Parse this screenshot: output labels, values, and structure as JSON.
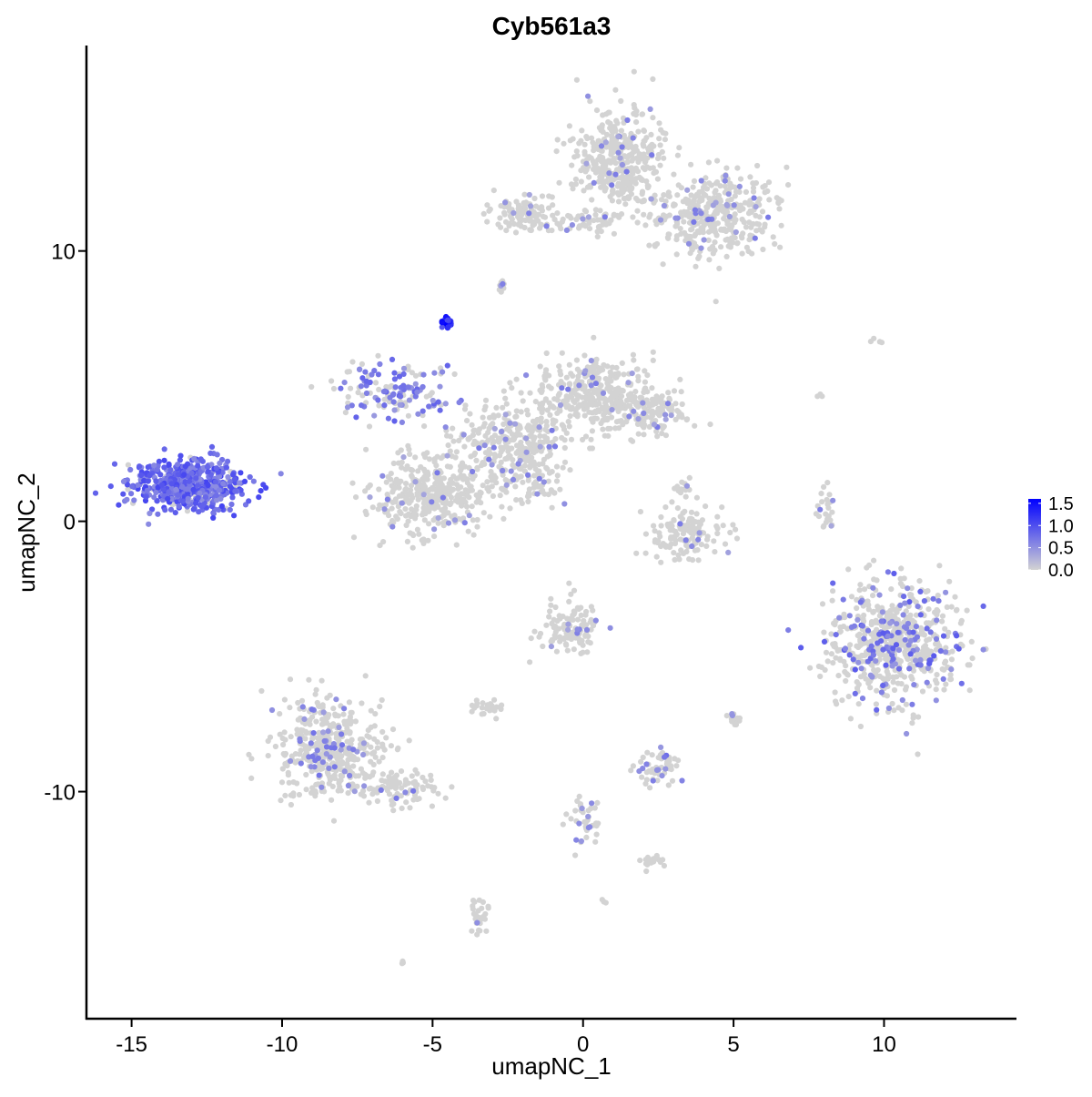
{
  "chart_data": {
    "type": "scatter",
    "title": "Cyb561a3",
    "xlabel": "umapNC_1",
    "ylabel": "umapNC_2",
    "xlim": [
      -16.5,
      14.4
    ],
    "ylim": [
      -18.4,
      17.6
    ],
    "xticks": [
      -15,
      -10,
      -5,
      0,
      5,
      10
    ],
    "xtick_labels": [
      "-15",
      "-10",
      "-5",
      "0",
      "5",
      "10"
    ],
    "yticks": [
      10,
      0,
      -10
    ],
    "ytick_labels": [
      "10",
      "0",
      "-10"
    ],
    "grid": false,
    "legend": {
      "placement": "right",
      "type": "colorbar",
      "tick_labels": [
        "1.5",
        "1.0",
        "0.5",
        "0.0"
      ],
      "tick_values": [
        1.5,
        1.0,
        0.5,
        0.0
      ],
      "range": [
        0.0,
        1.6
      ]
    },
    "color_low": "#d3d3d3",
    "color_high": "#0000ff",
    "clusters": [
      {
        "cx": -13.1,
        "cy": 1.3,
        "sx": 1.05,
        "sy": 0.55,
        "n": 600,
        "expr": 0.95,
        "high": 0.9
      },
      {
        "cx": -4.5,
        "cy": 7.4,
        "sx": 0.12,
        "sy": 0.12,
        "n": 25,
        "expr": 1.45,
        "high": 1.0
      },
      {
        "cx": -6.3,
        "cy": 4.8,
        "sx": 1.1,
        "sy": 0.7,
        "n": 140,
        "expr": 0.75,
        "high": 0.55
      },
      {
        "cx": -5.0,
        "cy": 1.0,
        "sx": 1.2,
        "sy": 0.9,
        "n": 380,
        "expr": 0.6,
        "high": 0.05
      },
      {
        "cx": -2.3,
        "cy": 2.8,
        "sx": 1.1,
        "sy": 0.9,
        "n": 300,
        "expr": 0.6,
        "high": 0.08
      },
      {
        "cx": 0.3,
        "cy": 4.6,
        "sx": 1.2,
        "sy": 0.9,
        "n": 350,
        "expr": 0.6,
        "high": 0.06
      },
      {
        "cx": 2.4,
        "cy": 4.0,
        "sx": 0.7,
        "sy": 0.5,
        "n": 120,
        "expr": 0.6,
        "high": 0.06
      },
      {
        "cx": -1.6,
        "cy": 1.4,
        "sx": 0.6,
        "sy": 0.6,
        "n": 50,
        "expr": 0.6,
        "high": 0.15
      },
      {
        "cx": 1.2,
        "cy": 13.3,
        "sx": 0.9,
        "sy": 1.2,
        "n": 380,
        "expr": 0.6,
        "high": 0.06
      },
      {
        "cx": 4.3,
        "cy": 11.3,
        "sx": 1.2,
        "sy": 0.9,
        "n": 380,
        "expr": 0.6,
        "high": 0.09
      },
      {
        "cx": -2.0,
        "cy": 11.4,
        "sx": 0.6,
        "sy": 0.4,
        "n": 110,
        "expr": 0.6,
        "high": 0.05
      },
      {
        "cx": 0.2,
        "cy": 11.1,
        "sx": 0.8,
        "sy": 0.3,
        "n": 60,
        "expr": 0.6,
        "high": 0.08
      },
      {
        "cx": 3.4,
        "cy": -0.4,
        "sx": 0.8,
        "sy": 0.6,
        "n": 140,
        "expr": 0.6,
        "high": 0.05
      },
      {
        "cx": 10.3,
        "cy": -4.5,
        "sx": 1.3,
        "sy": 1.3,
        "n": 650,
        "expr": 0.8,
        "high": 0.2
      },
      {
        "cx": -8.4,
        "cy": -8.4,
        "sx": 1.0,
        "sy": 1.1,
        "n": 430,
        "expr": 0.65,
        "high": 0.14
      },
      {
        "cx": -6.1,
        "cy": -9.9,
        "sx": 0.9,
        "sy": 0.4,
        "n": 90,
        "expr": 0.6,
        "high": 0.08
      },
      {
        "cx": -0.5,
        "cy": -4.0,
        "sx": 0.6,
        "sy": 0.6,
        "n": 120,
        "expr": 0.6,
        "high": 0.06
      },
      {
        "cx": 2.5,
        "cy": -9.1,
        "sx": 0.4,
        "sy": 0.4,
        "n": 60,
        "expr": 0.7,
        "high": 0.15
      },
      {
        "cx": -3.2,
        "cy": -6.9,
        "sx": 0.3,
        "sy": 0.15,
        "n": 30,
        "expr": 0.6,
        "high": 0.0
      },
      {
        "cx": -3.5,
        "cy": -14.6,
        "sx": 0.2,
        "sy": 0.4,
        "n": 30,
        "expr": 0.6,
        "high": 0.15
      },
      {
        "cx": 8.1,
        "cy": 0.5,
        "sx": 0.2,
        "sy": 0.5,
        "n": 25,
        "expr": 0.6,
        "high": 0.1
      },
      {
        "cx": 0.1,
        "cy": -11.0,
        "sx": 0.4,
        "sy": 0.6,
        "n": 40,
        "expr": 0.6,
        "high": 0.1
      },
      {
        "cx": 2.2,
        "cy": -12.6,
        "sx": 0.3,
        "sy": 0.15,
        "n": 20,
        "expr": 0.6,
        "high": 0.0
      },
      {
        "cx": 5.0,
        "cy": -7.3,
        "sx": 0.1,
        "sy": 0.2,
        "n": 15,
        "expr": 0.6,
        "high": 0.2
      },
      {
        "cx": -2.7,
        "cy": 8.7,
        "sx": 0.1,
        "sy": 0.15,
        "n": 10,
        "expr": 0.6,
        "high": 0.1
      },
      {
        "cx": 3.3,
        "cy": 1.2,
        "sx": 0.2,
        "sy": 0.2,
        "n": 15,
        "expr": 0.6,
        "high": 0.1
      },
      {
        "cx": 6.5,
        "cy": 11.9,
        "sx": 0.1,
        "sy": 0.1,
        "n": 5,
        "expr": 0.6,
        "high": 0.0
      },
      {
        "cx": 9.6,
        "cy": 6.7,
        "sx": 0.2,
        "sy": 0.1,
        "n": 4,
        "expr": 0.6,
        "high": 0.0
      },
      {
        "cx": 7.9,
        "cy": 4.7,
        "sx": 0.1,
        "sy": 0.1,
        "n": 3,
        "expr": 0.6,
        "high": 0.0
      },
      {
        "cx": -6.0,
        "cy": -16.3,
        "sx": 0.05,
        "sy": 0.05,
        "n": 3,
        "expr": 0.6,
        "high": 0.0
      },
      {
        "cx": 0.7,
        "cy": -14.1,
        "sx": 0.1,
        "sy": 0.05,
        "n": 3,
        "expr": 0.6,
        "high": 0.0
      }
    ]
  }
}
